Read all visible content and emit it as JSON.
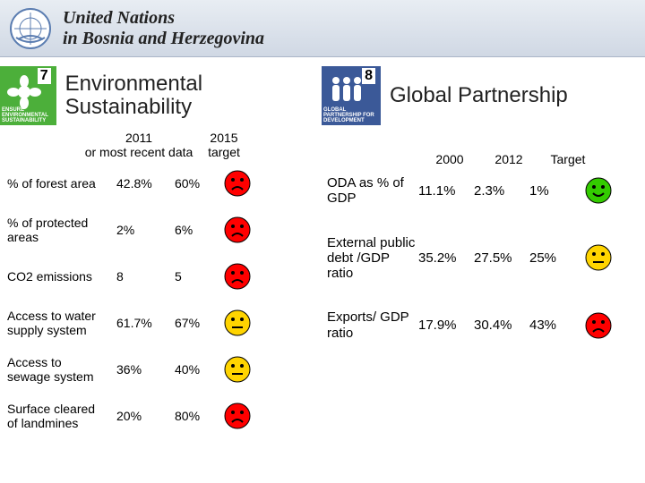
{
  "header": {
    "line1": "United Nations",
    "line2": "in Bosnia and Herzegovina"
  },
  "left": {
    "icon": {
      "number": "7",
      "bg": "#4caf3a",
      "label": "ENSURE ENVIRONMENTAL SUSTAINABILITY"
    },
    "title": "Environmental Sustainability",
    "headers": {
      "col1_line1": "2011",
      "col1_line2": "or most recent data",
      "col2_line1": "2015",
      "col2_line2": "target"
    },
    "rows": [
      {
        "label": "% of forest area",
        "v1": "42.8%",
        "v2": "60%",
        "face": "red"
      },
      {
        "label": "% of protected areas",
        "v1": "2%",
        "v2": "6%",
        "face": "red"
      },
      {
        "label": "CO2 emissions",
        "v1": "8",
        "v2": "5",
        "face": "red"
      },
      {
        "label": "Access to water supply system",
        "v1": "61.7%",
        "v2": "67%",
        "face": "yellow"
      },
      {
        "label": "Access to sewage system",
        "v1": "36%",
        "v2": "40%",
        "face": "yellow"
      },
      {
        "label": "Surface cleared of landmines",
        "v1": "20%",
        "v2": "80%",
        "face": "red"
      }
    ]
  },
  "right": {
    "icon": {
      "number": "8",
      "bg": "#3b5998",
      "label": "GLOBAL PARTNERSHIP FOR DEVELOPMENT"
    },
    "title": "Global Partnership",
    "headers": {
      "col1": "2000",
      "col2": "2012",
      "col3": "Target"
    },
    "rows": [
      {
        "label": "ODA as % of GDP",
        "v1": "11.1%",
        "v2": "2.3%",
        "v3": "1%",
        "face": "green"
      },
      {
        "label": "External public debt /GDP ratio",
        "v1": "35.2%",
        "v2": "27.5%",
        "v3": "25%",
        "face": "yellow"
      },
      {
        "label": "Exports/ GDP ratio",
        "v1": "17.9%",
        "v2": "30.4%",
        "v3": "43%",
        "face": "red"
      }
    ]
  },
  "faces": {
    "red": {
      "fill": "#ff0000",
      "mouth": "sad"
    },
    "yellow": {
      "fill": "#ffd400",
      "mouth": "flat"
    },
    "green": {
      "fill": "#33cc00",
      "mouth": "smile"
    }
  }
}
